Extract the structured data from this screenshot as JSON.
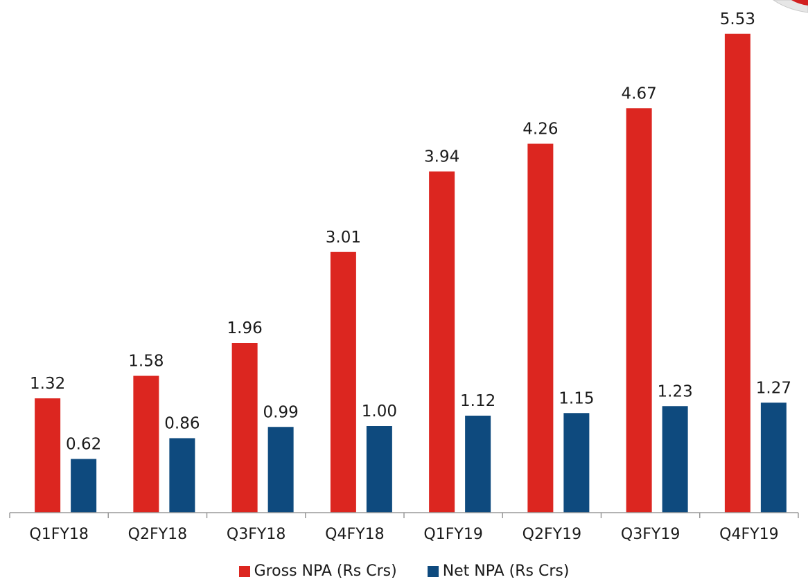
{
  "chart_data": {
    "type": "bar",
    "categories": [
      "Q1FY18",
      "Q2FY18",
      "Q3FY18",
      "Q4FY18",
      "Q1FY19",
      "Q2FY19",
      "Q3FY19",
      "Q4FY19"
    ],
    "series": [
      {
        "name": "Gross NPA (Rs Crs)",
        "values": [
          1.32,
          1.58,
          1.96,
          3.01,
          3.94,
          4.26,
          4.67,
          5.53
        ],
        "labels": [
          "1.32",
          "1.58",
          "1.96",
          "3.01",
          "3.94",
          "4.26",
          "4.67",
          "5.53"
        ],
        "color": "#dc2620"
      },
      {
        "name": "Net NPA (Rs Crs)",
        "values": [
          0.62,
          0.86,
          0.99,
          1.0,
          1.12,
          1.15,
          1.23,
          1.27
        ],
        "labels": [
          "0.62",
          "0.86",
          "0.99",
          "1.00",
          "1.12",
          "1.15",
          "1.23",
          "1.27"
        ],
        "color": "#0e4a7e"
      }
    ],
    "title": "",
    "xlabel": "",
    "ylabel": "",
    "ylim": [
      0,
      5.6
    ],
    "grid": false,
    "legend": "bottom-center"
  }
}
